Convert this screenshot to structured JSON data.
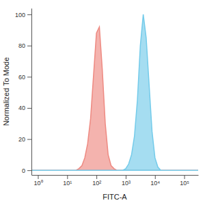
{
  "chart_data": {
    "type": "area",
    "x_label": "FITC-A",
    "y_label": "Normalized To Mode",
    "log": "x",
    "x": [
      0.6,
      1,
      10,
      20,
      25,
      32,
      40,
      50,
      63,
      79,
      100,
      126,
      158,
      200,
      251,
      316,
      400,
      500,
      631,
      794,
      1000,
      1259,
      1585,
      1995,
      2512,
      3162,
      3981,
      5012,
      6310,
      7943,
      10000,
      12589,
      15849,
      19953,
      100000,
      300000
    ],
    "series": [
      {
        "color": "#ee8a82",
        "values": [
          0,
          0,
          0,
          0,
          1,
          3,
          8,
          17,
          33,
          60,
          88,
          92,
          65,
          30,
          10,
          3,
          1,
          0,
          0,
          0,
          0,
          0,
          0,
          0,
          0,
          0,
          0,
          0,
          0,
          0,
          0,
          0,
          0,
          0,
          0,
          0
        ]
      },
      {
        "color": "#74cbea",
        "values": [
          0,
          0,
          0,
          0,
          0,
          0,
          0,
          0,
          0,
          0,
          0,
          0,
          0,
          0,
          0,
          0,
          0,
          0,
          0,
          0,
          1,
          4,
          10,
          22,
          45,
          80,
          100,
          85,
          55,
          25,
          8,
          2,
          0,
          0,
          0,
          0
        ]
      }
    ],
    "xlim": [
      0.6,
      300000
    ],
    "xticks": [
      {
        "value": 1,
        "label": "10⁰"
      },
      {
        "value": 10,
        "label": "10¹"
      },
      {
        "value": 100,
        "label": "10²"
      },
      {
        "value": 1000,
        "label": "10³"
      },
      {
        "value": 10000,
        "label": "10⁴"
      },
      {
        "value": 100000,
        "label": "10⁵"
      }
    ],
    "ylim": [
      -3,
      104
    ],
    "yticks": [
      0,
      20,
      40,
      60,
      80,
      100
    ],
    "grid": false
  }
}
